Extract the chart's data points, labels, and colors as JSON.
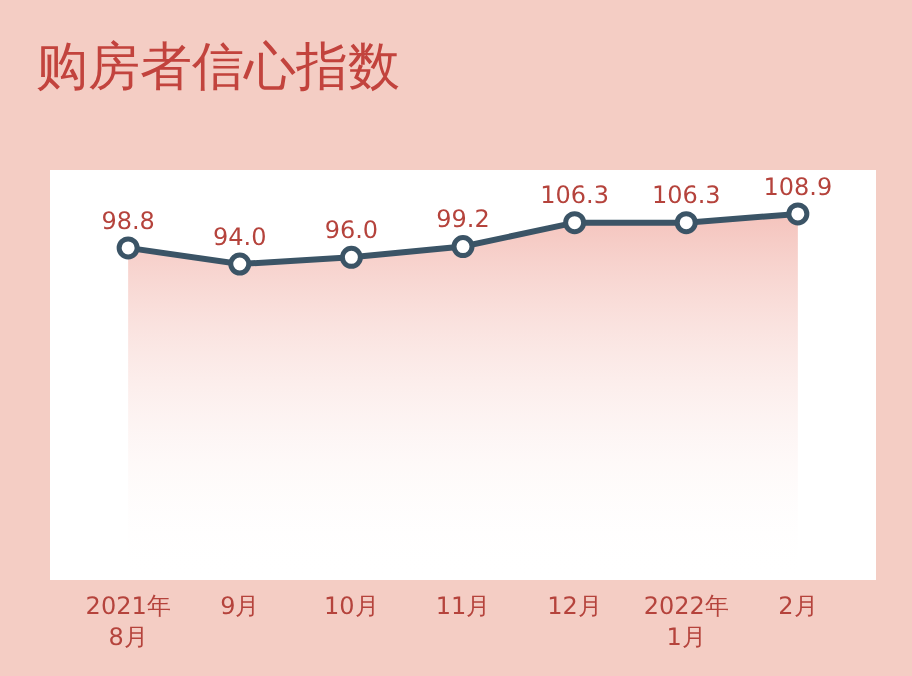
{
  "chart_data": {
    "type": "area",
    "title": "购房者信心指数",
    "categories": [
      "2021年\n8月",
      "9月",
      "10月",
      "11月",
      "12月",
      "2022年\n1月",
      "2月"
    ],
    "series": [
      {
        "color": "#3b5466",
        "values": [
          98.8,
          94.0,
          96.0,
          99.2,
          106.3,
          106.3,
          108.9
        ],
        "value_labels": [
          "98.8",
          "94.0",
          "96.0",
          "99.2",
          "106.3",
          "106.3",
          "108.9"
        ]
      }
    ],
    "marker": "circle"
  }
}
